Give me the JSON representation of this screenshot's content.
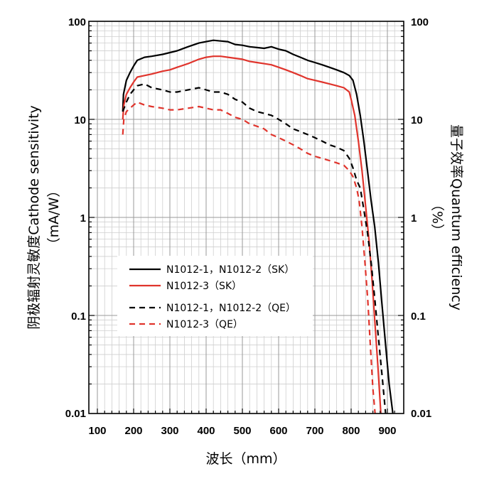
{
  "chart_data": {
    "type": "line",
    "xlabel": "波长（mm）",
    "ylabel_left": "阴极辐射灵敏度Cathode sensitivity",
    "ylabel_left_unit": "（mA/W）",
    "ylabel_right": "量子效率Quantum efficiency",
    "ylabel_right_unit": "（%）",
    "x_ticks": [
      100,
      200,
      300,
      400,
      500,
      600,
      700,
      800,
      900
    ],
    "y_ticks": [
      "0.01",
      "0.1",
      "1",
      "10",
      "100"
    ],
    "y_right_ticks": [
      "0.01",
      "0.1",
      "1",
      "10",
      "100"
    ],
    "xlim": [
      100,
      930
    ],
    "ylim": [
      0.01,
      100
    ],
    "y_scale": "log",
    "grid": true,
    "legend_position": "middle-left",
    "series": [
      {
        "name": "N1012-1，N1012-2（SK）",
        "color": "#000000",
        "dash": "solid",
        "points": [
          [
            170,
            12
          ],
          [
            172,
            18
          ],
          [
            180,
            25
          ],
          [
            190,
            30
          ],
          [
            200,
            35
          ],
          [
            210,
            40
          ],
          [
            230,
            43
          ],
          [
            250,
            44
          ],
          [
            280,
            46
          ],
          [
            300,
            48
          ],
          [
            320,
            50
          ],
          [
            350,
            55
          ],
          [
            380,
            60
          ],
          [
            400,
            62
          ],
          [
            420,
            64
          ],
          [
            440,
            63
          ],
          [
            460,
            62
          ],
          [
            480,
            58
          ],
          [
            500,
            57
          ],
          [
            520,
            55
          ],
          [
            540,
            54
          ],
          [
            560,
            53
          ],
          [
            580,
            55
          ],
          [
            600,
            52
          ],
          [
            620,
            50
          ],
          [
            640,
            46
          ],
          [
            660,
            43
          ],
          [
            680,
            40
          ],
          [
            700,
            38
          ],
          [
            720,
            36
          ],
          [
            740,
            34
          ],
          [
            760,
            32
          ],
          [
            780,
            30
          ],
          [
            795,
            28
          ],
          [
            805,
            25
          ],
          [
            815,
            18
          ],
          [
            825,
            11
          ],
          [
            835,
            6
          ],
          [
            845,
            3
          ],
          [
            855,
            1.5
          ],
          [
            865,
            0.8
          ],
          [
            875,
            0.35
          ],
          [
            885,
            0.13
          ],
          [
            895,
            0.05
          ],
          [
            905,
            0.02
          ],
          [
            915,
            0.01
          ]
        ]
      },
      {
        "name": "N1012-3（SK）",
        "color": "#e0342c",
        "dash": "solid",
        "points": [
          [
            170,
            10
          ],
          [
            173,
            14
          ],
          [
            180,
            18
          ],
          [
            190,
            21
          ],
          [
            200,
            24
          ],
          [
            210,
            27
          ],
          [
            230,
            28
          ],
          [
            250,
            29
          ],
          [
            280,
            31
          ],
          [
            300,
            32
          ],
          [
            320,
            34
          ],
          [
            350,
            37
          ],
          [
            380,
            41
          ],
          [
            400,
            43
          ],
          [
            420,
            44
          ],
          [
            440,
            44
          ],
          [
            460,
            43
          ],
          [
            480,
            42
          ],
          [
            500,
            41
          ],
          [
            520,
            39
          ],
          [
            540,
            38
          ],
          [
            560,
            37
          ],
          [
            580,
            36
          ],
          [
            600,
            34
          ],
          [
            620,
            32
          ],
          [
            640,
            30
          ],
          [
            660,
            28
          ],
          [
            680,
            26
          ],
          [
            700,
            25
          ],
          [
            720,
            24
          ],
          [
            740,
            23
          ],
          [
            760,
            22
          ],
          [
            780,
            21
          ],
          [
            795,
            19
          ],
          [
            800,
            16
          ],
          [
            810,
            11
          ],
          [
            820,
            6
          ],
          [
            830,
            3
          ],
          [
            840,
            1.3
          ],
          [
            850,
            0.55
          ],
          [
            858,
            0.22
          ],
          [
            866,
            0.08
          ],
          [
            874,
            0.03
          ],
          [
            882,
            0.01
          ]
        ]
      },
      {
        "name": "N1012-1，N1012-2（QE）",
        "color": "#000000",
        "dash": "dashed",
        "points": [
          [
            170,
            12
          ],
          [
            180,
            15
          ],
          [
            190,
            18
          ],
          [
            200,
            20
          ],
          [
            210,
            22
          ],
          [
            230,
            23
          ],
          [
            250,
            21
          ],
          [
            280,
            20
          ],
          [
            300,
            19
          ],
          [
            320,
            19
          ],
          [
            350,
            20
          ],
          [
            380,
            21
          ],
          [
            400,
            20
          ],
          [
            420,
            19
          ],
          [
            440,
            19
          ],
          [
            460,
            18
          ],
          [
            480,
            16
          ],
          [
            500,
            15
          ],
          [
            520,
            13
          ],
          [
            540,
            12
          ],
          [
            560,
            11.5
          ],
          [
            580,
            11
          ],
          [
            600,
            10
          ],
          [
            620,
            9
          ],
          [
            640,
            8
          ],
          [
            660,
            7.5
          ],
          [
            680,
            7
          ],
          [
            700,
            6.5
          ],
          [
            720,
            6
          ],
          [
            740,
            5.5
          ],
          [
            760,
            5.2
          ],
          [
            780,
            4.8
          ],
          [
            795,
            4
          ],
          [
            805,
            3.2
          ],
          [
            815,
            2.4
          ],
          [
            825,
            2
          ],
          [
            835,
            1.2
          ],
          [
            845,
            0.7
          ],
          [
            855,
            0.35
          ],
          [
            865,
            0.15
          ],
          [
            875,
            0.06
          ],
          [
            885,
            0.025
          ],
          [
            895,
            0.01
          ]
        ]
      },
      {
        "name": "N1012-3（QE）",
        "color": "#e0342c",
        "dash": "dashed",
        "points": [
          [
            170,
            7
          ],
          [
            173,
            10
          ],
          [
            180,
            12
          ],
          [
            190,
            13
          ],
          [
            200,
            14
          ],
          [
            210,
            15
          ],
          [
            230,
            14
          ],
          [
            250,
            13.5
          ],
          [
            280,
            13
          ],
          [
            300,
            12.5
          ],
          [
            320,
            12.5
          ],
          [
            350,
            13
          ],
          [
            380,
            13.5
          ],
          [
            400,
            13
          ],
          [
            420,
            12.5
          ],
          [
            440,
            12.5
          ],
          [
            460,
            11.5
          ],
          [
            480,
            10.5
          ],
          [
            500,
            10
          ],
          [
            520,
            9
          ],
          [
            540,
            8.5
          ],
          [
            560,
            8
          ],
          [
            580,
            7
          ],
          [
            600,
            6.5
          ],
          [
            620,
            6
          ],
          [
            640,
            5.5
          ],
          [
            660,
            5
          ],
          [
            680,
            4.5
          ],
          [
            700,
            4.2
          ],
          [
            720,
            4
          ],
          [
            740,
            3.8
          ],
          [
            760,
            3.6
          ],
          [
            780,
            3.4
          ],
          [
            795,
            3
          ],
          [
            805,
            2.6
          ],
          [
            815,
            2
          ],
          [
            822,
            1.5
          ],
          [
            830,
            0.8
          ],
          [
            838,
            0.35
          ],
          [
            846,
            0.14
          ],
          [
            853,
            0.05
          ],
          [
            860,
            0.018
          ],
          [
            866,
            0.01
          ]
        ]
      }
    ]
  }
}
